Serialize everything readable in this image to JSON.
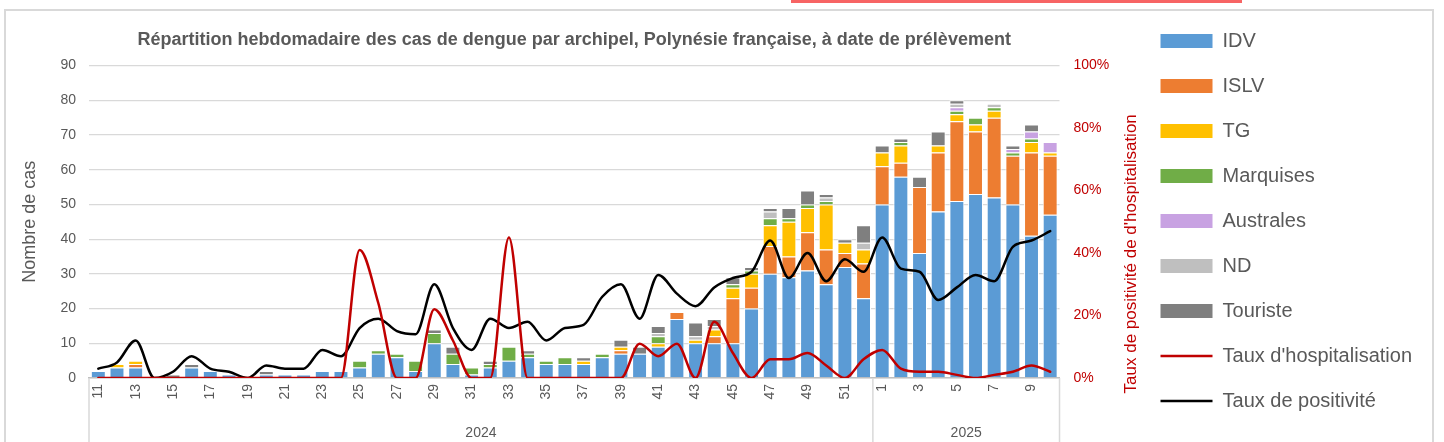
{
  "chart_data": {
    "type": "bar",
    "title": "Répartition hebdomadaire des cas de dengue par archipel, Polynésie française, à date de prélèvement",
    "ylabel": "Nombre de cas",
    "y2label": "Taux de positivité de d'hospitalisation",
    "categories": [
      "11",
      null,
      "13",
      null,
      "15",
      null,
      "17",
      null,
      "19",
      null,
      "21",
      null,
      "23",
      null,
      "25",
      null,
      "27",
      null,
      "29",
      null,
      "31",
      null,
      "33",
      null,
      "35",
      null,
      "37",
      null,
      "39",
      null,
      "41",
      null,
      "43",
      null,
      "45",
      null,
      "47",
      null,
      "49",
      null,
      "51",
      null,
      "1",
      null,
      "3",
      null,
      "5",
      null,
      "7",
      null,
      "9",
      null
    ],
    "stacked": true,
    "series": [
      {
        "name": "IDV",
        "color": "#5b9bd5",
        "values": [
          2,
          3,
          3,
          0,
          0,
          3,
          2,
          1,
          0,
          1,
          1,
          1,
          2,
          2,
          3,
          7,
          6,
          2,
          10,
          4,
          1,
          3,
          5,
          6,
          4,
          4,
          4,
          6,
          7,
          7,
          9,
          17,
          10,
          10,
          10,
          20,
          30,
          29,
          31,
          27,
          32,
          23,
          50,
          58,
          36,
          48,
          51,
          53,
          52,
          50,
          41,
          47
        ]
      },
      {
        "name": "ISLV",
        "color": "#ed7d31",
        "values": [
          0,
          0,
          1,
          0,
          0,
          0,
          0,
          0,
          0,
          0,
          0,
          0,
          0,
          0,
          0,
          0,
          0,
          0,
          0,
          0,
          0,
          0,
          0,
          0,
          0,
          0,
          0,
          0,
          1,
          0,
          0,
          2,
          0,
          2,
          13,
          6,
          8,
          6,
          11,
          10,
          4,
          10,
          11,
          4,
          19,
          17,
          23,
          18,
          23,
          14,
          24,
          17
        ]
      },
      {
        "name": "TG",
        "color": "#ffc000",
        "values": [
          0,
          1,
          1,
          0,
          0,
          0,
          0,
          0,
          0,
          0,
          0,
          0,
          0,
          0,
          0,
          0,
          0,
          0,
          0,
          0,
          0,
          0,
          0,
          0,
          0,
          0,
          1,
          0,
          1,
          0,
          1,
          0,
          1,
          2,
          3,
          4,
          6,
          10,
          7,
          13,
          3,
          4,
          4,
          5,
          0,
          2,
          2,
          2,
          2,
          0,
          3,
          1
        ]
      },
      {
        "name": "Marquises",
        "color": "#70ad47",
        "values": [
          0,
          0,
          0,
          0,
          0,
          0,
          0,
          0,
          0,
          0,
          0,
          0,
          0,
          0,
          2,
          1,
          1,
          3,
          3,
          3,
          2,
          1,
          4,
          1,
          1,
          2,
          0,
          1,
          0,
          0,
          2,
          0,
          0,
          0,
          1,
          1,
          2,
          1,
          1,
          1,
          0,
          0,
          0,
          1,
          0,
          0,
          1,
          2,
          1,
          1,
          1,
          0
        ]
      },
      {
        "name": "Australes",
        "color": "#c8a2e2",
        "values": [
          0,
          0,
          0,
          0,
          0,
          0,
          0,
          0,
          0,
          0,
          0,
          0,
          0,
          0,
          0,
          0,
          0,
          0,
          0,
          0,
          0,
          0,
          0,
          0,
          0,
          0,
          0,
          0,
          0,
          0,
          0,
          0,
          0,
          0,
          0,
          0,
          0,
          0,
          0,
          0,
          0,
          0,
          0,
          0,
          0,
          0,
          1,
          0,
          0,
          1,
          2,
          3
        ]
      },
      {
        "name": "ND",
        "color": "#bfbfbf",
        "values": [
          0,
          0,
          0,
          0,
          0,
          0,
          0,
          0,
          0,
          0,
          0,
          0,
          0,
          0,
          0,
          0,
          0,
          0,
          0,
          0,
          0,
          0,
          0,
          0,
          0,
          0,
          0,
          0,
          0,
          0,
          1,
          0,
          1,
          1,
          0,
          0,
          2,
          0,
          0,
          1,
          0,
          2,
          0,
          0,
          0,
          0,
          1,
          0,
          1,
          0,
          0,
          0
        ]
      },
      {
        "name": "Touriste",
        "color": "#7f7f7f",
        "values": [
          0,
          0,
          0,
          0,
          1,
          1,
          0,
          0,
          0,
          1,
          0,
          0,
          0,
          0,
          0,
          0,
          0,
          0,
          1,
          2,
          0,
          1,
          0,
          1,
          0,
          0,
          1,
          0,
          2,
          2,
          2,
          0,
          4,
          2,
          2,
          1,
          1,
          3,
          4,
          1,
          1,
          5,
          2,
          1,
          3,
          4,
          1,
          0,
          0,
          1,
          2,
          0
        ]
      },
      {
        "name": "Taux d'hospitalisation",
        "type": "line",
        "axis": "y2",
        "color": "#c00000",
        "values": [
          0,
          0,
          0,
          0,
          0,
          0,
          0,
          0,
          0,
          0,
          0,
          0,
          0,
          0,
          41,
          24,
          0,
          0,
          22,
          12,
          0,
          0,
          45,
          0,
          0,
          0,
          0,
          0,
          0,
          11,
          7,
          11,
          0,
          18,
          8,
          0,
          6,
          6,
          8,
          4,
          0,
          6,
          9,
          3,
          2,
          2,
          1,
          0,
          1,
          2,
          4,
          2
        ]
      },
      {
        "name": "Taux de positivité",
        "type": "line",
        "axis": "y2",
        "color": "#000000",
        "values": [
          3,
          5,
          12,
          0,
          2,
          7,
          3,
          2,
          0,
          4,
          3,
          3,
          9,
          7,
          16,
          19,
          15,
          14,
          30,
          16,
          9,
          19,
          16,
          18,
          12,
          16,
          17,
          26,
          30,
          19,
          33,
          27,
          23,
          29,
          32,
          34,
          44,
          32,
          40,
          31,
          38,
          34,
          45,
          35,
          34,
          25,
          29,
          33,
          31,
          42,
          44,
          47
        ]
      }
    ],
    "ylim": [
      0,
      90
    ],
    "yticks": [
      0,
      10,
      20,
      30,
      40,
      50,
      60,
      70,
      80,
      90
    ],
    "y2lim": [
      0,
      100
    ],
    "y2ticks": [
      {
        "value": 0,
        "label": "0%"
      },
      {
        "value": 20,
        "label": "20%"
      },
      {
        "value": 40,
        "label": "40%"
      },
      {
        "value": 60,
        "label": "60%"
      },
      {
        "value": 80,
        "label": "80%"
      },
      {
        "value": 100,
        "label": "100%"
      }
    ],
    "grid": "y",
    "legend": "right",
    "annotations": [
      "2024",
      "2025"
    ]
  }
}
